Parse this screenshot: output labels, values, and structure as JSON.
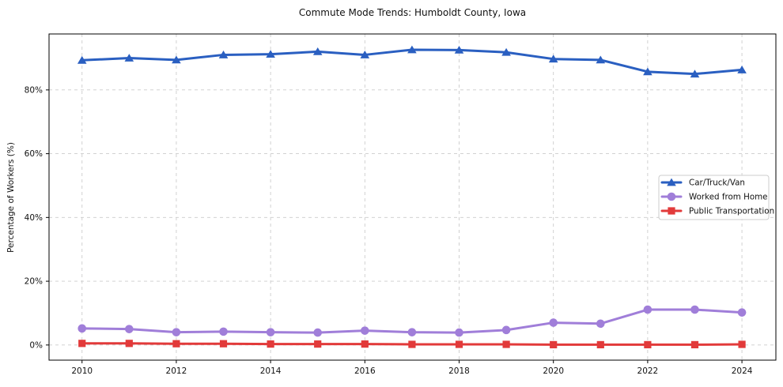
{
  "chart_data": {
    "type": "line",
    "title": "Commute Mode Trends: Humboldt County, Iowa",
    "xlabel": "",
    "ylabel": "Percentage of Workers (%)",
    "x": [
      2010,
      2011,
      2012,
      2013,
      2014,
      2015,
      2016,
      2017,
      2018,
      2019,
      2020,
      2021,
      2022,
      2023,
      2024
    ],
    "x_ticks": [
      2010,
      2012,
      2014,
      2016,
      2018,
      2020,
      2022,
      2024
    ],
    "x_tick_labels": [
      "2010",
      "2012",
      "2014",
      "2016",
      "2018",
      "2020",
      "2022",
      "2024"
    ],
    "y_ticks": [
      0,
      20,
      40,
      60,
      80
    ],
    "y_tick_labels": [
      "0%",
      "20%",
      "40%",
      "60%",
      "80%"
    ],
    "xlim": [
      2009.3,
      2024.72
    ],
    "ylim": [
      -4.75,
      97.55
    ],
    "grid": true,
    "grid_color": "#cccccc",
    "axis_color": "#000000",
    "background_color": "#ffffff",
    "legend": {
      "position": "center right"
    },
    "series": [
      {
        "name": "Car/Truck/Van",
        "color": "#2A5FC1",
        "marker": "triangle",
        "values": [
          89.3,
          90.0,
          89.4,
          91.0,
          91.2,
          92.0,
          91.0,
          92.6,
          92.5,
          91.8,
          89.7,
          89.4,
          85.7,
          85.0,
          86.3
        ]
      },
      {
        "name": "Worked from Home",
        "color": "#A07ED9",
        "marker": "circle",
        "values": [
          5.2,
          5.0,
          4.0,
          4.2,
          4.0,
          3.9,
          4.5,
          4.0,
          3.9,
          4.7,
          7.0,
          6.7,
          11.1,
          11.1,
          10.2
        ]
      },
      {
        "name": "Public Transportation",
        "color": "#E23A3A",
        "marker": "square",
        "values": [
          0.5,
          0.5,
          0.4,
          0.4,
          0.3,
          0.3,
          0.3,
          0.2,
          0.2,
          0.2,
          0.1,
          0.1,
          0.1,
          0.1,
          0.2
        ]
      }
    ]
  }
}
